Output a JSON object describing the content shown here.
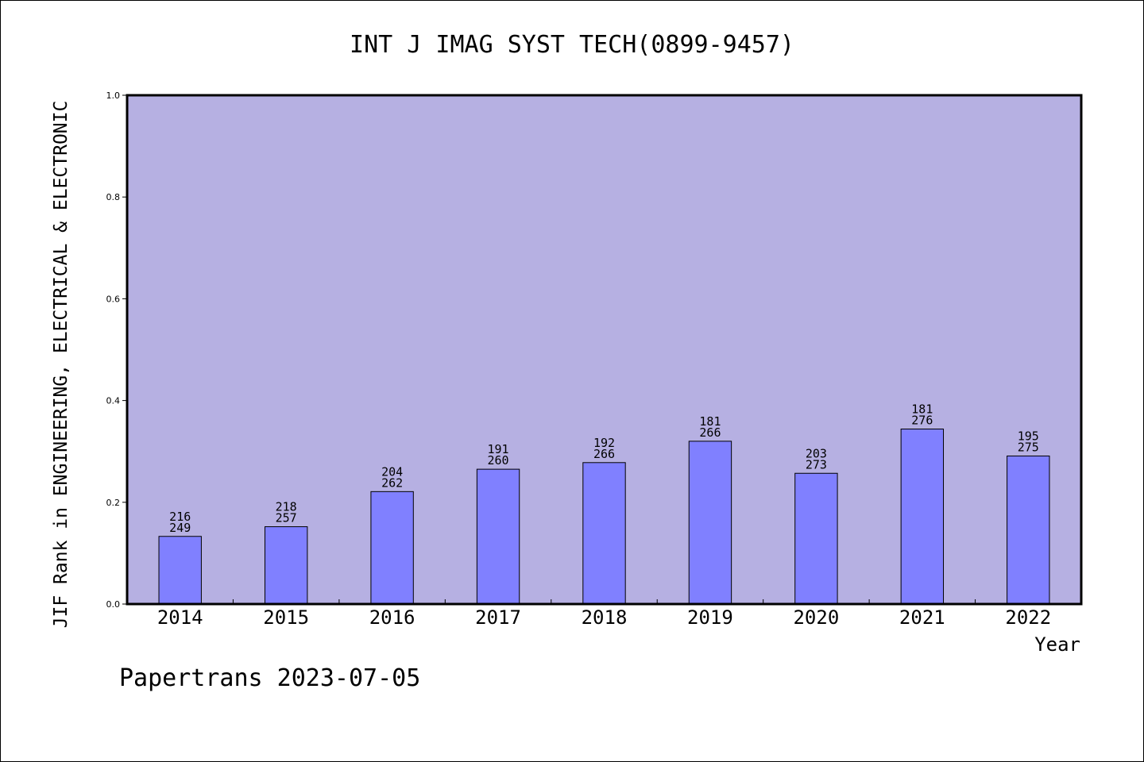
{
  "chart_data": {
    "type": "bar",
    "title": "INT J IMAG SYST TECH(0899-9457)",
    "ylabel": "JIF Rank in ENGINEERING, ELECTRICAL & ELECTRONIC",
    "xlabel": "Year",
    "categories": [
      "2014",
      "2015",
      "2016",
      "2017",
      "2018",
      "2019",
      "2020",
      "2021",
      "2022"
    ],
    "values": [
      0.133,
      0.152,
      0.221,
      0.265,
      0.278,
      0.32,
      0.257,
      0.344,
      0.291
    ],
    "bar_labels": [
      [
        "216",
        "249"
      ],
      [
        "218",
        "257"
      ],
      [
        "204",
        "262"
      ],
      [
        "191",
        "260"
      ],
      [
        "192",
        "266"
      ],
      [
        "181",
        "266"
      ],
      [
        "203",
        "273"
      ],
      [
        "181",
        "276"
      ],
      [
        "195",
        "275"
      ]
    ],
    "ylim": [
      0,
      1.0
    ],
    "yticks": [
      "0.0",
      "0.2",
      "0.4",
      "0.6",
      "0.8",
      "1.0"
    ],
    "grid": false,
    "colors": {
      "plot_background": "#b6b0e2",
      "bar_fill": "#8080ff",
      "bar_edge": "#000000"
    }
  },
  "footer": "Papertrans 2023-07-05"
}
